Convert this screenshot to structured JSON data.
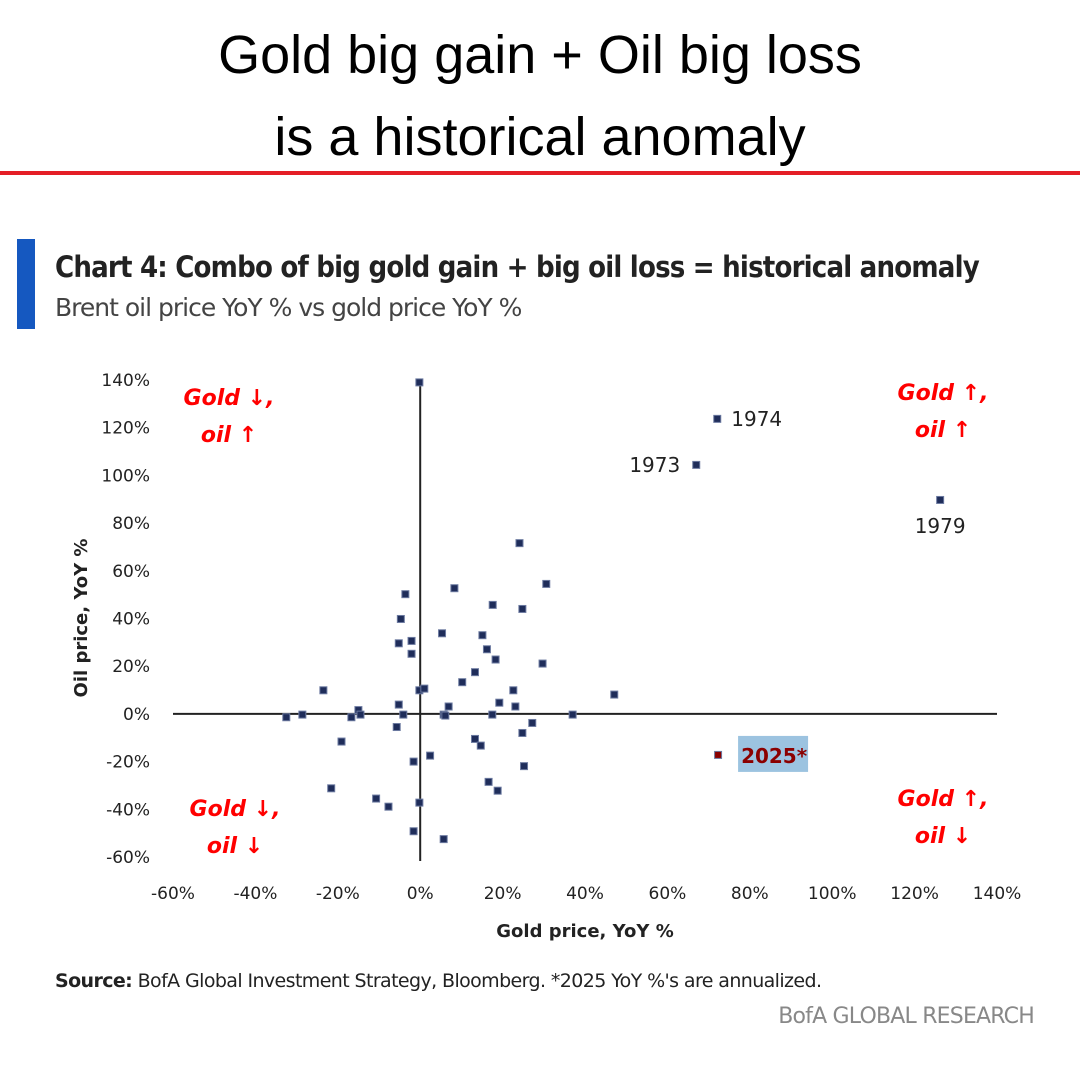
{
  "headline": {
    "line1": "Gold big gain + Oil big loss",
    "line2": "is a historical anomaly"
  },
  "colors": {
    "accent_red": "#e41e26",
    "accent_blue": "#1558c0",
    "point": "#1f2d5a",
    "highlight_point": "#8b0000",
    "highlight_box": "#9cc3e0",
    "quadrant_label": "#ff0000"
  },
  "chart_data": {
    "type": "scatter",
    "title": "Chart 4: Combo of big gold gain + big oil loss = historical anomaly",
    "subtitle": "Brent oil price YoY % vs gold price YoY %",
    "xlabel": "Gold price, YoY %",
    "ylabel": "Oil price, YoY %",
    "xlim": [
      -60,
      140
    ],
    "ylim": [
      -60,
      140
    ],
    "x_ticks": [
      "-60%",
      "-40%",
      "-20%",
      "0%",
      "20%",
      "40%",
      "60%",
      "80%",
      "100%",
      "120%",
      "140%"
    ],
    "y_ticks": [
      "140%",
      "120%",
      "100%",
      "80%",
      "60%",
      "40%",
      "20%",
      "0%",
      "-20%",
      "-40%",
      "-60%"
    ],
    "grid": false,
    "points": [
      [
        24.1,
        71.6
      ],
      [
        30.6,
        54.5
      ],
      [
        8.3,
        52.7
      ],
      [
        -3.6,
        50.2
      ],
      [
        17.6,
        45.7
      ],
      [
        24.8,
        44.0
      ],
      [
        -4.7,
        39.8
      ],
      [
        5.3,
        33.8
      ],
      [
        15.1,
        33.0
      ],
      [
        -5.2,
        29.6
      ],
      [
        -2.1,
        30.6
      ],
      [
        -2.1,
        25.2
      ],
      [
        16.2,
        27.1
      ],
      [
        18.3,
        22.8
      ],
      [
        29.7,
        21.1
      ],
      [
        13.3,
        17.5
      ],
      [
        10.2,
        13.3
      ],
      [
        -23.5,
        9.9
      ],
      [
        -0.2,
        9.9
      ],
      [
        1.0,
        10.6
      ],
      [
        22.6,
        9.9
      ],
      [
        47.1,
        8.1
      ],
      [
        19.2,
        4.7
      ],
      [
        23.1,
        3.1
      ],
      [
        6.9,
        3.1
      ],
      [
        -5.2,
        3.9
      ],
      [
        -15.0,
        1.6
      ],
      [
        -32.5,
        -1.4
      ],
      [
        -28.6,
        -0.3
      ],
      [
        -16.7,
        -1.4
      ],
      [
        -14.5,
        -0.3
      ],
      [
        -4.1,
        -0.3
      ],
      [
        5.7,
        -0.3
      ],
      [
        6.1,
        -0.7
      ],
      [
        17.5,
        -0.3
      ],
      [
        37.0,
        -0.3
      ],
      [
        27.2,
        -3.8
      ],
      [
        -5.7,
        -5.5
      ],
      [
        24.8,
        -8.0
      ],
      [
        13.3,
        -10.5
      ],
      [
        14.7,
        -13.3
      ],
      [
        -19.1,
        -11.6
      ],
      [
        2.4,
        -17.5
      ],
      [
        -1.6,
        -20.0
      ],
      [
        25.2,
        -21.9
      ],
      [
        16.6,
        -28.5
      ],
      [
        18.8,
        -32.2
      ],
      [
        -21.6,
        -31.2
      ],
      [
        -10.7,
        -35.5
      ],
      [
        -7.7,
        -38.9
      ],
      [
        -0.2,
        -37.2
      ],
      [
        -1.6,
        -49.2
      ],
      [
        5.7,
        -52.5
      ],
      [
        -0.2,
        139
      ]
    ],
    "labeled_points": [
      {
        "label": "1974",
        "x": 72.1,
        "y": 123.7
      },
      {
        "label": "1973",
        "x": 67.0,
        "y": 104.4
      },
      {
        "label": "1979",
        "x": 126.2,
        "y": 89.7
      }
    ],
    "highlight_point": {
      "label": "2025*",
      "x": 72.3,
      "y": -17.2
    },
    "annotations": {
      "top_left": [
        "Gold ↓,",
        "oil ↑"
      ],
      "top_right": [
        "Gold ↑,",
        "oil ↑"
      ],
      "bottom_left": [
        "Gold ↓,",
        "oil ↓"
      ],
      "bottom_right": [
        "Gold ↑,",
        "oil ↓"
      ]
    }
  },
  "source": {
    "label": "Source:",
    "text": " BofA Global Investment Strategy, Bloomberg. *2025 YoY %'s are annualized."
  },
  "brand": "BofA GLOBAL RESEARCH"
}
